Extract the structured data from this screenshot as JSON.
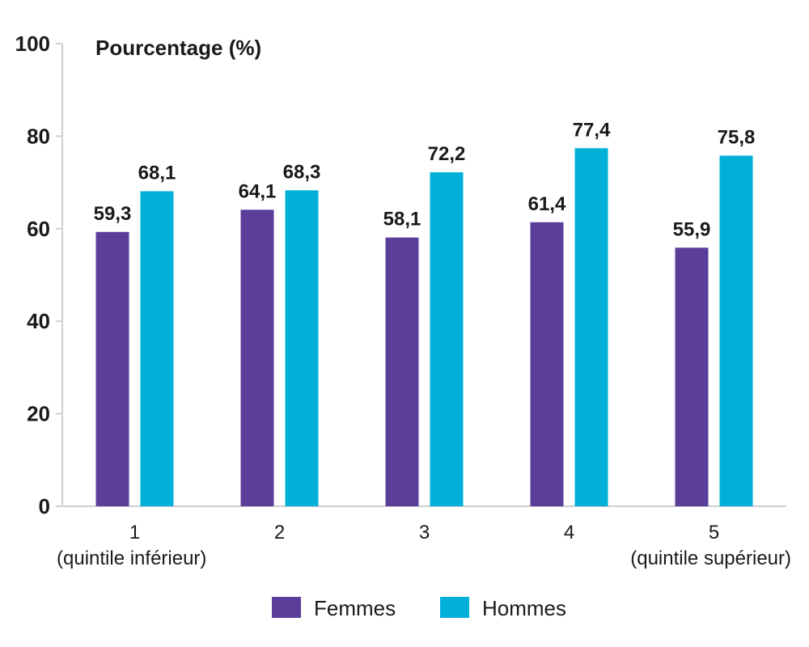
{
  "chart_data": {
    "type": "bar",
    "ylabel": "Pourcentage (%)",
    "ylim": [
      0,
      100
    ],
    "yticks": [
      "0",
      "20",
      "40",
      "60",
      "80",
      "100"
    ],
    "categories": [
      {
        "line1": "1",
        "line2": "(quintile inférieur)"
      },
      {
        "line1": "2",
        "line2": ""
      },
      {
        "line1": "3",
        "line2": ""
      },
      {
        "line1": "4",
        "line2": ""
      },
      {
        "line1": "5",
        "line2": "(quintile supérieur)"
      }
    ],
    "series": [
      {
        "name": "Femmes",
        "color": "#5a3e99",
        "values": [
          59.3,
          64.1,
          58.1,
          61.4,
          55.9
        ],
        "labels": [
          "59,3",
          "64,1",
          "58,1",
          "61,4",
          "55,9"
        ]
      },
      {
        "name": "Hommes",
        "color": "#00b0d8",
        "values": [
          68.1,
          68.3,
          72.2,
          77.4,
          75.8
        ],
        "labels": [
          "68,1",
          "68,3",
          "72,2",
          "77,4",
          "75,8"
        ]
      }
    ],
    "grid": false,
    "legend_position": "bottom-center"
  }
}
